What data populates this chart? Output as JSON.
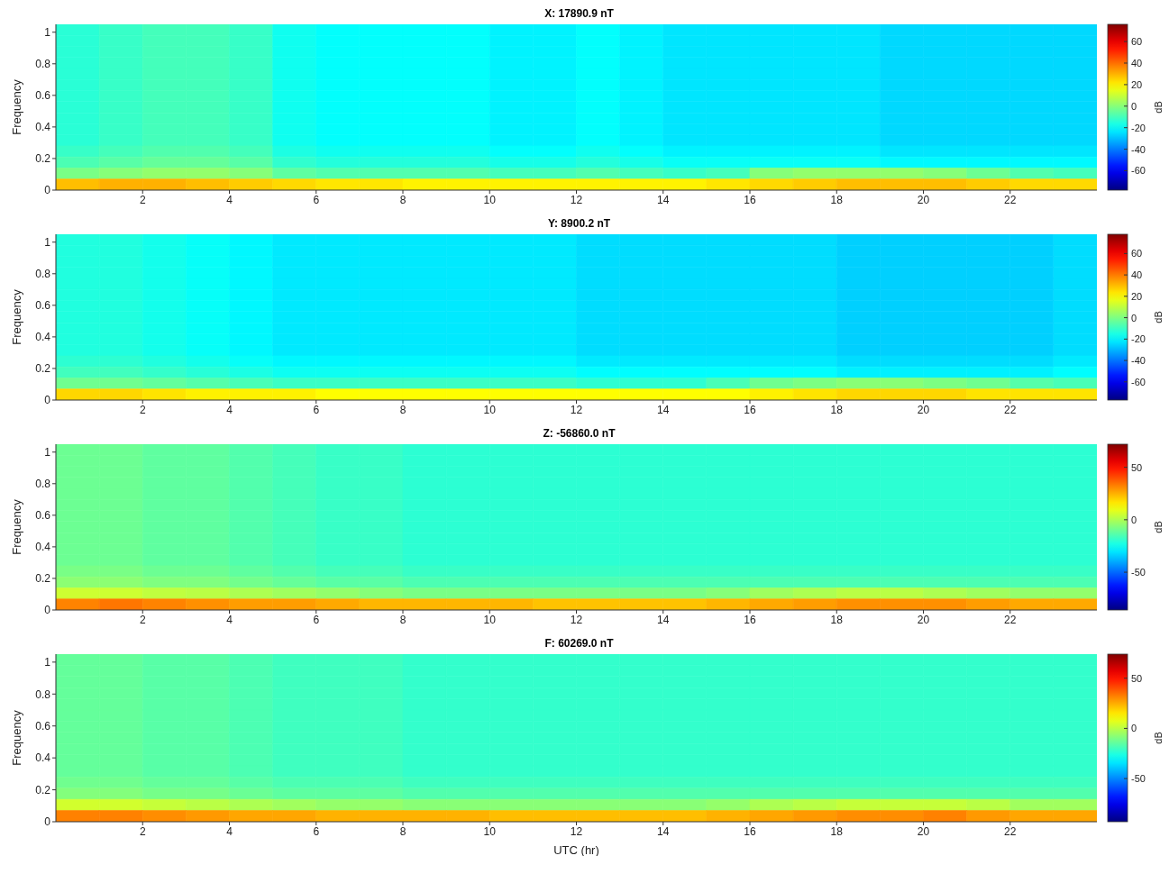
{
  "chart_data": [
    {
      "type": "heatmap",
      "title": "X: 17890.9 nT",
      "ylabel": "Frequency",
      "clabel": "dB",
      "xlim": [
        0,
        24
      ],
      "xticks": [
        2,
        4,
        6,
        8,
        10,
        12,
        14,
        16,
        18,
        20,
        22
      ],
      "ylim": [
        0,
        1.05
      ],
      "yticks": [
        0,
        0.2,
        0.4,
        0.6,
        0.8,
        1
      ],
      "clim": [
        -78,
        76
      ],
      "cticks": [
        -60,
        -40,
        -20,
        0,
        20,
        40,
        60
      ],
      "cells": [
        [
          -14,
          -12,
          -10,
          -10,
          -12,
          -18,
          -20,
          -20,
          -20,
          -20,
          -22,
          -22,
          -20,
          -22,
          -24,
          -24,
          -24,
          -24,
          -24,
          -26,
          -26,
          -26,
          -26,
          -26
        ],
        [
          -14,
          -12,
          -10,
          -10,
          -12,
          -18,
          -20,
          -20,
          -20,
          -20,
          -22,
          -22,
          -20,
          -22,
          -24,
          -24,
          -24,
          -24,
          -24,
          -26,
          -26,
          -26,
          -26,
          -26
        ],
        [
          -14,
          -12,
          -10,
          -10,
          -12,
          -18,
          -20,
          -20,
          -20,
          -20,
          -22,
          -22,
          -20,
          -22,
          -24,
          -24,
          -24,
          -24,
          -24,
          -26,
          -26,
          -26,
          -26,
          -26
        ],
        [
          -14,
          -12,
          -10,
          -10,
          -12,
          -18,
          -20,
          -20,
          -20,
          -20,
          -22,
          -22,
          -20,
          -22,
          -24,
          -24,
          -24,
          -24,
          -24,
          -26,
          -26,
          -26,
          -26,
          -26
        ],
        [
          -14,
          -12,
          -10,
          -10,
          -12,
          -18,
          -20,
          -20,
          -20,
          -20,
          -22,
          -22,
          -20,
          -22,
          -24,
          -24,
          -24,
          -24,
          -24,
          -26,
          -26,
          -26,
          -26,
          -26
        ],
        [
          -14,
          -12,
          -10,
          -10,
          -12,
          -18,
          -20,
          -20,
          -20,
          -20,
          -22,
          -22,
          -20,
          -22,
          -24,
          -24,
          -24,
          -24,
          -24,
          -26,
          -26,
          -26,
          -26,
          -26
        ],
        [
          -14,
          -12,
          -10,
          -10,
          -12,
          -18,
          -20,
          -20,
          -20,
          -20,
          -22,
          -22,
          -20,
          -22,
          -24,
          -24,
          -24,
          -24,
          -24,
          -26,
          -26,
          -26,
          -26,
          -26
        ],
        [
          -14,
          -12,
          -10,
          -10,
          -12,
          -18,
          -20,
          -20,
          -20,
          -20,
          -22,
          -22,
          -20,
          -22,
          -24,
          -24,
          -24,
          -24,
          -24,
          -26,
          -26,
          -26,
          -26,
          -26
        ],
        [
          -14,
          -12,
          -10,
          -10,
          -12,
          -18,
          -20,
          -20,
          -20,
          -20,
          -22,
          -22,
          -20,
          -22,
          -24,
          -24,
          -24,
          -24,
          -24,
          -26,
          -26,
          -26,
          -26,
          -26
        ],
        [
          -14,
          -12,
          -10,
          -10,
          -12,
          -18,
          -20,
          -20,
          -20,
          -20,
          -22,
          -22,
          -20,
          -22,
          -24,
          -24,
          -24,
          -24,
          -24,
          -26,
          -26,
          -26,
          -26,
          -26
        ],
        [
          -14,
          -12,
          -10,
          -10,
          -12,
          -18,
          -20,
          -20,
          -20,
          -20,
          -22,
          -22,
          -20,
          -22,
          -24,
          -24,
          -24,
          -24,
          -24,
          -26,
          -26,
          -26,
          -26,
          -26
        ],
        [
          -12,
          -10,
          -8,
          -8,
          -10,
          -16,
          -18,
          -18,
          -18,
          -18,
          -20,
          -20,
          -18,
          -20,
          -22,
          -22,
          -22,
          -22,
          -22,
          -24,
          -24,
          -24,
          -24,
          -24
        ],
        [
          -9,
          -7,
          -5,
          -5,
          -7,
          -13,
          -15,
          -15,
          -15,
          -15,
          -17,
          -17,
          -15,
          -17,
          -19,
          -19,
          -19,
          -19,
          -19,
          -21,
          -21,
          -21,
          -21,
          -21
        ],
        [
          -2,
          0,
          2,
          2,
          0,
          -6,
          -8,
          -8,
          -8,
          -8,
          -10,
          -10,
          -8,
          -10,
          -12,
          -10,
          0,
          2,
          2,
          2,
          0,
          -4,
          -8,
          -10
        ],
        [
          28,
          30,
          30,
          28,
          26,
          24,
          22,
          22,
          20,
          20,
          20,
          20,
          20,
          20,
          20,
          22,
          24,
          26,
          28,
          28,
          28,
          26,
          24,
          24
        ]
      ]
    },
    {
      "type": "heatmap",
      "title": "Y: 8900.2 nT",
      "ylabel": "Frequency",
      "clabel": "dB",
      "xlim": [
        0,
        24
      ],
      "xticks": [
        2,
        4,
        6,
        8,
        10,
        12,
        14,
        16,
        18,
        20,
        22
      ],
      "ylim": [
        0,
        1.05
      ],
      "yticks": [
        0,
        0.2,
        0.4,
        0.6,
        0.8,
        1
      ],
      "clim": [
        -77,
        78
      ],
      "cticks": [
        -60,
        -40,
        -20,
        0,
        20,
        40,
        60
      ],
      "cells": [
        [
          -14,
          -14,
          -16,
          -18,
          -20,
          -22,
          -22,
          -22,
          -22,
          -22,
          -22,
          -22,
          -24,
          -24,
          -24,
          -24,
          -24,
          -24,
          -26,
          -26,
          -26,
          -26,
          -26,
          -24
        ],
        [
          -14,
          -14,
          -16,
          -18,
          -20,
          -22,
          -22,
          -22,
          -22,
          -22,
          -22,
          -22,
          -24,
          -24,
          -24,
          -24,
          -24,
          -24,
          -26,
          -26,
          -26,
          -26,
          -26,
          -24
        ],
        [
          -14,
          -14,
          -16,
          -18,
          -20,
          -22,
          -22,
          -22,
          -22,
          -22,
          -22,
          -22,
          -24,
          -24,
          -24,
          -24,
          -24,
          -24,
          -26,
          -26,
          -26,
          -26,
          -26,
          -24
        ],
        [
          -14,
          -14,
          -16,
          -18,
          -20,
          -22,
          -22,
          -22,
          -22,
          -22,
          -22,
          -22,
          -24,
          -24,
          -24,
          -24,
          -24,
          -24,
          -26,
          -26,
          -26,
          -26,
          -26,
          -24
        ],
        [
          -14,
          -14,
          -16,
          -18,
          -20,
          -22,
          -22,
          -22,
          -22,
          -22,
          -22,
          -22,
          -24,
          -24,
          -24,
          -24,
          -24,
          -24,
          -26,
          -26,
          -26,
          -26,
          -26,
          -24
        ],
        [
          -14,
          -14,
          -16,
          -18,
          -20,
          -22,
          -22,
          -22,
          -22,
          -22,
          -22,
          -22,
          -24,
          -24,
          -24,
          -24,
          -24,
          -24,
          -26,
          -26,
          -26,
          -26,
          -26,
          -24
        ],
        [
          -14,
          -14,
          -16,
          -18,
          -20,
          -22,
          -22,
          -22,
          -22,
          -22,
          -22,
          -22,
          -24,
          -24,
          -24,
          -24,
          -24,
          -24,
          -26,
          -26,
          -26,
          -26,
          -26,
          -24
        ],
        [
          -14,
          -14,
          -16,
          -18,
          -20,
          -22,
          -22,
          -22,
          -22,
          -22,
          -22,
          -22,
          -24,
          -24,
          -24,
          -24,
          -24,
          -24,
          -26,
          -26,
          -26,
          -26,
          -26,
          -24
        ],
        [
          -14,
          -14,
          -16,
          -18,
          -20,
          -22,
          -22,
          -22,
          -22,
          -22,
          -22,
          -22,
          -24,
          -24,
          -24,
          -24,
          -24,
          -24,
          -26,
          -26,
          -26,
          -26,
          -26,
          -24
        ],
        [
          -14,
          -14,
          -16,
          -18,
          -20,
          -22,
          -22,
          -22,
          -22,
          -22,
          -22,
          -22,
          -24,
          -24,
          -24,
          -24,
          -24,
          -24,
          -26,
          -26,
          -26,
          -26,
          -26,
          -24
        ],
        [
          -14,
          -14,
          -16,
          -18,
          -20,
          -22,
          -22,
          -22,
          -22,
          -22,
          -22,
          -22,
          -24,
          -24,
          -24,
          -24,
          -24,
          -24,
          -26,
          -26,
          -26,
          -26,
          -26,
          -24
        ],
        [
          -12,
          -12,
          -14,
          -16,
          -18,
          -20,
          -20,
          -20,
          -20,
          -20,
          -20,
          -20,
          -22,
          -22,
          -22,
          -22,
          -22,
          -22,
          -24,
          -24,
          -24,
          -24,
          -24,
          -22
        ],
        [
          -9,
          -9,
          -11,
          -13,
          -15,
          -17,
          -17,
          -17,
          -17,
          -17,
          -17,
          -17,
          -19,
          -19,
          -19,
          -19,
          -19,
          -19,
          -21,
          -21,
          -21,
          -21,
          -21,
          -19
        ],
        [
          -2,
          -2,
          -4,
          -6,
          -8,
          -10,
          -10,
          -10,
          -10,
          -10,
          -10,
          -10,
          -12,
          -12,
          -12,
          -8,
          -2,
          0,
          2,
          2,
          0,
          -2,
          -6,
          -8
        ],
        [
          26,
          26,
          24,
          22,
          22,
          22,
          20,
          20,
          20,
          20,
          20,
          20,
          20,
          20,
          20,
          20,
          22,
          24,
          26,
          26,
          26,
          24,
          24,
          24
        ]
      ]
    },
    {
      "type": "heatmap",
      "title": "Z: -56860.0 nT",
      "ylabel": "Frequency",
      "clabel": "dB",
      "xlim": [
        0,
        24
      ],
      "xticks": [
        2,
        4,
        6,
        8,
        10,
        12,
        14,
        16,
        18,
        20,
        22
      ],
      "ylim": [
        0,
        1.05
      ],
      "yticks": [
        0,
        0.2,
        0.4,
        0.6,
        0.8,
        1
      ],
      "clim": [
        -86,
        72
      ],
      "cticks": [
        -50,
        0,
        50
      ],
      "cells": [
        [
          -10,
          -10,
          -12,
          -12,
          -14,
          -16,
          -18,
          -18,
          -20,
          -20,
          -20,
          -20,
          -20,
          -20,
          -20,
          -20,
          -20,
          -20,
          -20,
          -20,
          -20,
          -20,
          -20,
          -20
        ],
        [
          -10,
          -10,
          -12,
          -12,
          -14,
          -16,
          -18,
          -18,
          -20,
          -20,
          -20,
          -20,
          -20,
          -20,
          -20,
          -20,
          -20,
          -20,
          -20,
          -20,
          -20,
          -20,
          -20,
          -20
        ],
        [
          -10,
          -10,
          -12,
          -12,
          -14,
          -16,
          -18,
          -18,
          -20,
          -20,
          -20,
          -20,
          -20,
          -20,
          -20,
          -20,
          -20,
          -20,
          -20,
          -20,
          -20,
          -20,
          -20,
          -20
        ],
        [
          -10,
          -10,
          -12,
          -12,
          -14,
          -16,
          -18,
          -18,
          -20,
          -20,
          -20,
          -20,
          -20,
          -20,
          -20,
          -20,
          -20,
          -20,
          -20,
          -20,
          -20,
          -20,
          -20,
          -20
        ],
        [
          -10,
          -10,
          -12,
          -12,
          -14,
          -16,
          -18,
          -18,
          -20,
          -20,
          -20,
          -20,
          -20,
          -20,
          -20,
          -20,
          -20,
          -20,
          -20,
          -20,
          -20,
          -20,
          -20,
          -20
        ],
        [
          -10,
          -10,
          -12,
          -12,
          -14,
          -16,
          -18,
          -18,
          -20,
          -20,
          -20,
          -20,
          -20,
          -20,
          -20,
          -20,
          -20,
          -20,
          -20,
          -20,
          -20,
          -20,
          -20,
          -20
        ],
        [
          -10,
          -10,
          -12,
          -12,
          -14,
          -16,
          -18,
          -18,
          -20,
          -20,
          -20,
          -20,
          -20,
          -20,
          -20,
          -20,
          -20,
          -20,
          -20,
          -20,
          -20,
          -20,
          -20,
          -20
        ],
        [
          -10,
          -10,
          -12,
          -12,
          -14,
          -16,
          -18,
          -18,
          -20,
          -20,
          -20,
          -20,
          -20,
          -20,
          -20,
          -20,
          -20,
          -20,
          -20,
          -20,
          -20,
          -20,
          -20,
          -20
        ],
        [
          -10,
          -10,
          -12,
          -12,
          -14,
          -16,
          -18,
          -18,
          -20,
          -20,
          -20,
          -20,
          -20,
          -20,
          -20,
          -20,
          -20,
          -20,
          -20,
          -20,
          -20,
          -20,
          -20,
          -20
        ],
        [
          -10,
          -10,
          -12,
          -12,
          -14,
          -16,
          -18,
          -18,
          -20,
          -20,
          -20,
          -20,
          -20,
          -20,
          -20,
          -20,
          -20,
          -20,
          -20,
          -20,
          -20,
          -20,
          -20,
          -20
        ],
        [
          -10,
          -10,
          -12,
          -12,
          -14,
          -16,
          -18,
          -18,
          -20,
          -20,
          -20,
          -20,
          -20,
          -20,
          -20,
          -20,
          -20,
          -20,
          -20,
          -20,
          -20,
          -20,
          -20,
          -20
        ],
        [
          -8,
          -8,
          -10,
          -10,
          -12,
          -14,
          -16,
          -16,
          -18,
          -18,
          -18,
          -18,
          -18,
          -18,
          -18,
          -18,
          -18,
          -18,
          -18,
          -18,
          -18,
          -18,
          -18,
          -18
        ],
        [
          -5,
          -5,
          -7,
          -7,
          -9,
          -11,
          -13,
          -13,
          -15,
          -15,
          -15,
          -15,
          -15,
          -15,
          -15,
          -15,
          -15,
          -15,
          -15,
          -15,
          -15,
          -15,
          -15,
          -15
        ],
        [
          5,
          5,
          3,
          2,
          0,
          -2,
          -4,
          -6,
          -8,
          -8,
          -8,
          -8,
          -8,
          -8,
          -8,
          -6,
          -2,
          0,
          2,
          2,
          0,
          -2,
          -4,
          -4
        ],
        [
          32,
          34,
          32,
          30,
          28,
          28,
          26,
          24,
          24,
          24,
          24,
          22,
          22,
          22,
          22,
          24,
          26,
          28,
          30,
          30,
          30,
          28,
          26,
          26
        ]
      ]
    },
    {
      "type": "heatmap",
      "title": "F: 60269.0 nT",
      "xlabel": "UTC (hr)",
      "ylabel": "Frequency",
      "clabel": "dB",
      "xlim": [
        0,
        24
      ],
      "xticks": [
        2,
        4,
        6,
        8,
        10,
        12,
        14,
        16,
        18,
        20,
        22
      ],
      "ylim": [
        0,
        1.05
      ],
      "yticks": [
        0,
        0.2,
        0.4,
        0.6,
        0.8,
        1
      ],
      "clim": [
        -93,
        74
      ],
      "cticks": [
        -50,
        0,
        50
      ],
      "cells": [
        [
          -14,
          -14,
          -16,
          -16,
          -18,
          -20,
          -20,
          -20,
          -22,
          -22,
          -22,
          -22,
          -22,
          -22,
          -22,
          -22,
          -22,
          -22,
          -22,
          -22,
          -22,
          -22,
          -22,
          -22
        ],
        [
          -14,
          -14,
          -16,
          -16,
          -18,
          -20,
          -20,
          -20,
          -22,
          -22,
          -22,
          -22,
          -22,
          -22,
          -22,
          -22,
          -22,
          -22,
          -22,
          -22,
          -22,
          -22,
          -22,
          -22
        ],
        [
          -14,
          -14,
          -16,
          -16,
          -18,
          -20,
          -20,
          -20,
          -22,
          -22,
          -22,
          -22,
          -22,
          -22,
          -22,
          -22,
          -22,
          -22,
          -22,
          -22,
          -22,
          -22,
          -22,
          -22
        ],
        [
          -14,
          -14,
          -16,
          -16,
          -18,
          -20,
          -20,
          -20,
          -22,
          -22,
          -22,
          -22,
          -22,
          -22,
          -22,
          -22,
          -22,
          -22,
          -22,
          -22,
          -22,
          -22,
          -22,
          -22
        ],
        [
          -14,
          -14,
          -16,
          -16,
          -18,
          -20,
          -20,
          -20,
          -22,
          -22,
          -22,
          -22,
          -22,
          -22,
          -22,
          -22,
          -22,
          -22,
          -22,
          -22,
          -22,
          -22,
          -22,
          -22
        ],
        [
          -14,
          -14,
          -16,
          -16,
          -18,
          -20,
          -20,
          -20,
          -22,
          -22,
          -22,
          -22,
          -22,
          -22,
          -22,
          -22,
          -22,
          -22,
          -22,
          -22,
          -22,
          -22,
          -22,
          -22
        ],
        [
          -14,
          -14,
          -16,
          -16,
          -18,
          -20,
          -20,
          -20,
          -22,
          -22,
          -22,
          -22,
          -22,
          -22,
          -22,
          -22,
          -22,
          -22,
          -22,
          -22,
          -22,
          -22,
          -22,
          -22
        ],
        [
          -14,
          -14,
          -16,
          -16,
          -18,
          -20,
          -20,
          -20,
          -22,
          -22,
          -22,
          -22,
          -22,
          -22,
          -22,
          -22,
          -22,
          -22,
          -22,
          -22,
          -22,
          -22,
          -22,
          -22
        ],
        [
          -14,
          -14,
          -16,
          -16,
          -18,
          -20,
          -20,
          -20,
          -22,
          -22,
          -22,
          -22,
          -22,
          -22,
          -22,
          -22,
          -22,
          -22,
          -22,
          -22,
          -22,
          -22,
          -22,
          -22
        ],
        [
          -14,
          -14,
          -16,
          -16,
          -18,
          -20,
          -20,
          -20,
          -22,
          -22,
          -22,
          -22,
          -22,
          -22,
          -22,
          -22,
          -22,
          -22,
          -22,
          -22,
          -22,
          -22,
          -22,
          -22
        ],
        [
          -14,
          -14,
          -16,
          -16,
          -18,
          -20,
          -20,
          -20,
          -22,
          -22,
          -22,
          -22,
          -22,
          -22,
          -22,
          -22,
          -22,
          -22,
          -22,
          -22,
          -22,
          -22,
          -22,
          -22
        ],
        [
          -12,
          -12,
          -14,
          -14,
          -16,
          -18,
          -18,
          -18,
          -20,
          -20,
          -20,
          -20,
          -20,
          -20,
          -20,
          -20,
          -20,
          -20,
          -20,
          -20,
          -20,
          -20,
          -20,
          -20
        ],
        [
          -9,
          -9,
          -11,
          -11,
          -13,
          -15,
          -15,
          -15,
          -17,
          -17,
          -17,
          -17,
          -17,
          -17,
          -17,
          -17,
          -17,
          -17,
          -17,
          -17,
          -17,
          -17,
          -17,
          -17
        ],
        [
          4,
          4,
          2,
          0,
          -2,
          -4,
          -6,
          -6,
          -8,
          -8,
          -8,
          -8,
          -8,
          -8,
          -8,
          -6,
          -2,
          0,
          2,
          2,
          2,
          0,
          -4,
          -4
        ],
        [
          32,
          32,
          30,
          28,
          26,
          26,
          24,
          24,
          24,
          24,
          22,
          22,
          22,
          22,
          22,
          24,
          26,
          28,
          30,
          30,
          32,
          28,
          26,
          26
        ]
      ]
    }
  ]
}
